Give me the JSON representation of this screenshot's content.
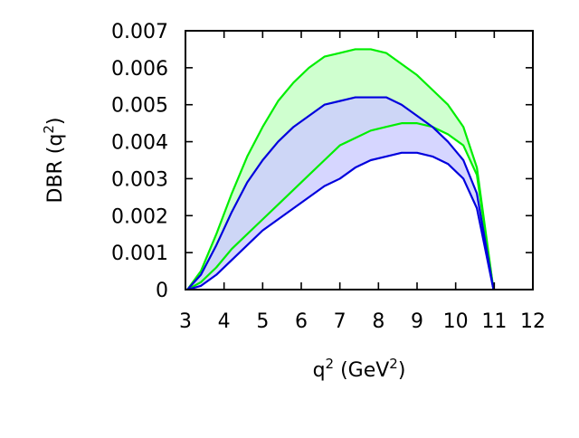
{
  "chart_data": {
    "type": "area",
    "title": "",
    "xlabel_base": "q",
    "xlabel_sup": "2",
    "xlabel_mid": " (GeV",
    "xlabel_sup2": "2",
    "xlabel_end": ")",
    "ylabel_base": "DBR (q",
    "ylabel_sup": "2",
    "ylabel_end": ")",
    "xlim": [
      3,
      12
    ],
    "ylim": [
      0,
      0.007
    ],
    "xticks": [
      3,
      4,
      5,
      6,
      7,
      8,
      9,
      10,
      11,
      12
    ],
    "xtick_labels": [
      "3",
      "4",
      "5",
      "6",
      "7",
      "8",
      "9",
      "10",
      "11",
      "12"
    ],
    "yticks": [
      0,
      0.001,
      0.002,
      0.003,
      0.004,
      0.005,
      0.006,
      0.007
    ],
    "ytick_labels": [
      "0",
      "0.001",
      "0.002",
      "0.003",
      "0.004",
      "0.005",
      "0.006",
      "0.007"
    ],
    "grid": false,
    "legend": "none",
    "bands": [
      {
        "fill_color": "#ccffcc",
        "line_color": "#00ee00",
        "upper": {
          "x": [
            3.05,
            3.4,
            3.8,
            4.2,
            4.6,
            5.0,
            5.4,
            5.8,
            6.2,
            6.6,
            7.0,
            7.4,
            7.8,
            8.2,
            8.6,
            9.0,
            9.4,
            9.8,
            10.2,
            10.55,
            10.98
          ],
          "y": [
            0,
            0.0005,
            0.0015,
            0.0026,
            0.0036,
            0.0044,
            0.0051,
            0.0056,
            0.006,
            0.0063,
            0.0064,
            0.0065,
            0.0065,
            0.0064,
            0.0061,
            0.0058,
            0.0054,
            0.005,
            0.0044,
            0.0033,
            0
          ]
        },
        "lower": {
          "x": [
            3.05,
            3.4,
            3.8,
            4.2,
            4.6,
            5.0,
            5.4,
            5.8,
            6.2,
            6.6,
            7.0,
            7.4,
            7.8,
            8.2,
            8.6,
            9.0,
            9.4,
            9.8,
            10.2,
            10.55,
            10.98
          ],
          "y": [
            0,
            0.0002,
            0.0006,
            0.0011,
            0.0015,
            0.0019,
            0.0023,
            0.0027,
            0.0031,
            0.0035,
            0.0039,
            0.0041,
            0.0043,
            0.0044,
            0.0045,
            0.0045,
            0.0044,
            0.0042,
            0.0039,
            0.0031,
            0
          ]
        }
      },
      {
        "fill_color": "#ccccff",
        "line_color": "#0000dd",
        "upper": {
          "x": [
            3.05,
            3.4,
            3.8,
            4.2,
            4.6,
            5.0,
            5.4,
            5.8,
            6.2,
            6.6,
            7.0,
            7.4,
            7.8,
            8.2,
            8.6,
            9.0,
            9.4,
            9.8,
            10.2,
            10.55,
            10.98
          ],
          "y": [
            0,
            0.0004,
            0.0012,
            0.0021,
            0.0029,
            0.0035,
            0.004,
            0.0044,
            0.0047,
            0.005,
            0.0051,
            0.0052,
            0.0052,
            0.0052,
            0.005,
            0.0047,
            0.0044,
            0.004,
            0.0035,
            0.0026,
            0
          ]
        },
        "lower": {
          "x": [
            3.05,
            3.4,
            3.8,
            4.2,
            4.6,
            5.0,
            5.4,
            5.8,
            6.2,
            6.6,
            7.0,
            7.4,
            7.8,
            8.2,
            8.6,
            9.0,
            9.4,
            9.8,
            10.2,
            10.55,
            10.98
          ],
          "y": [
            0,
            0.0001,
            0.0004,
            0.0008,
            0.0012,
            0.0016,
            0.0019,
            0.0022,
            0.0025,
            0.0028,
            0.003,
            0.0033,
            0.0035,
            0.0036,
            0.0037,
            0.0037,
            0.0036,
            0.0034,
            0.003,
            0.0022,
            0
          ]
        }
      }
    ]
  }
}
